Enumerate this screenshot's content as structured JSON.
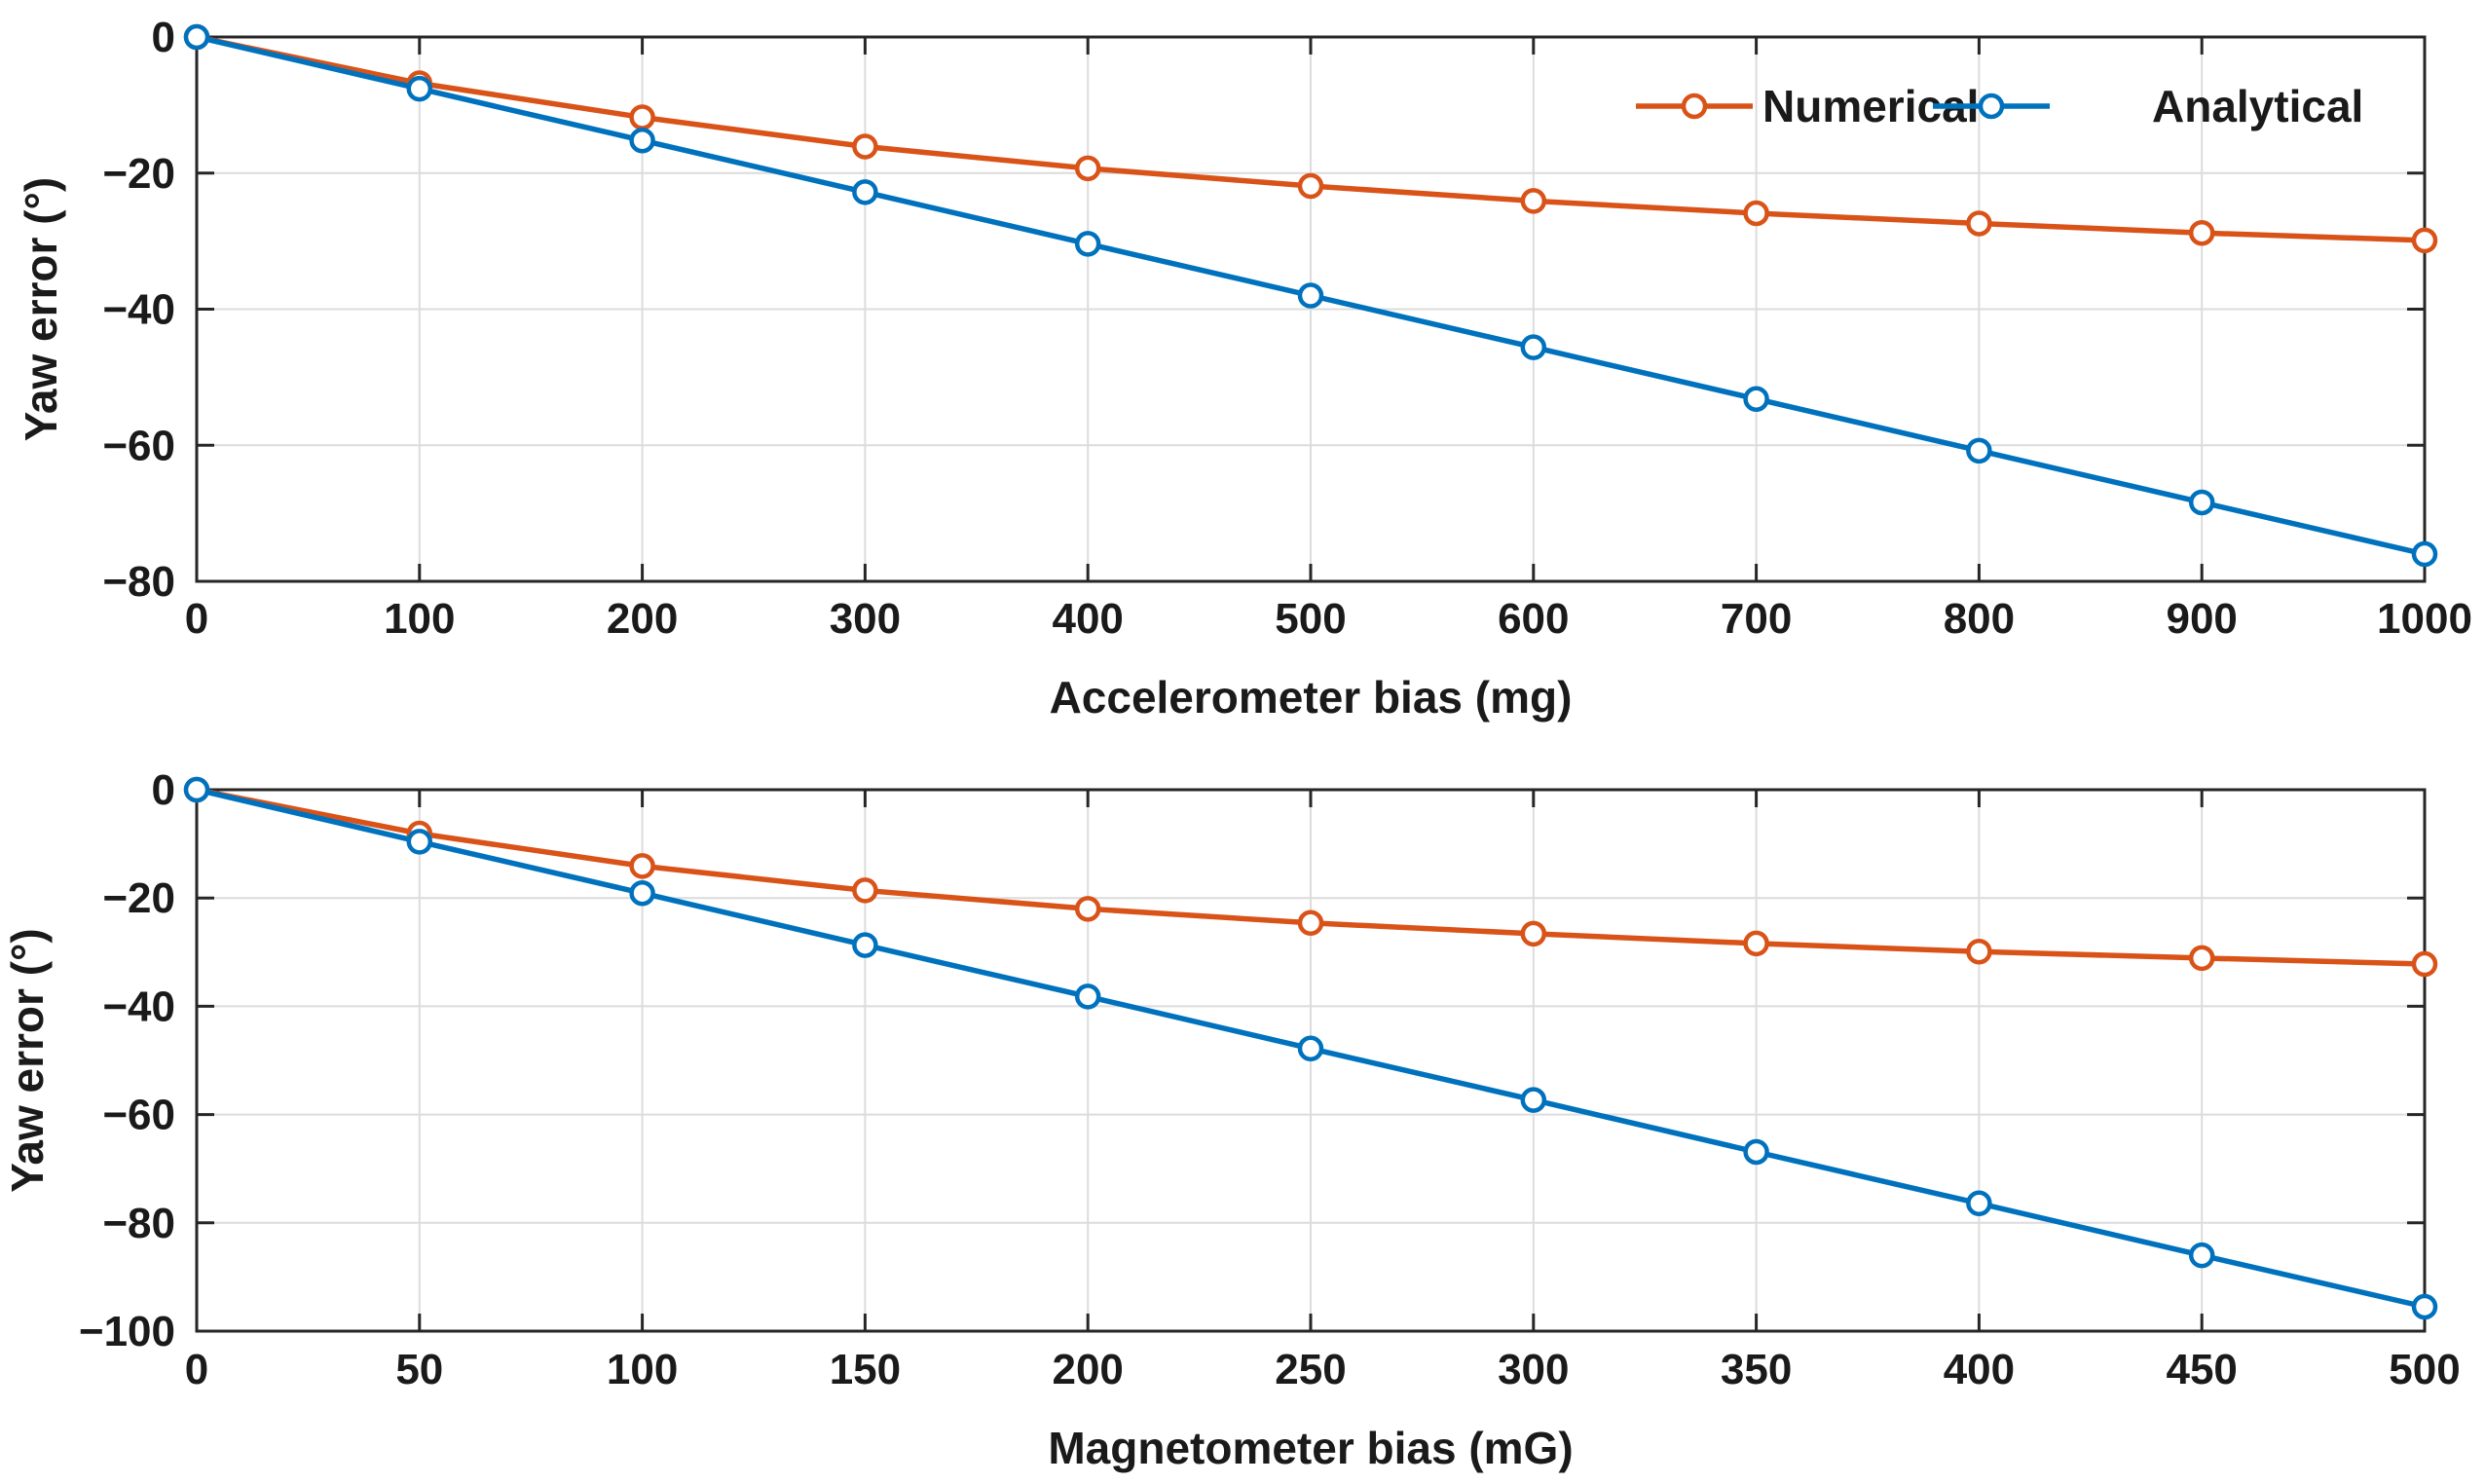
{
  "chart_data": [
    {
      "type": "line",
      "title": "",
      "xlabel": "Accelerometer bias (mg)",
      "ylabel": "Yaw error (°)",
      "x": [
        0,
        100,
        200,
        300,
        400,
        500,
        600,
        700,
        800,
        900,
        1000
      ],
      "xlim": [
        0,
        1000
      ],
      "ylim": [
        -80,
        0
      ],
      "xticks": [
        0,
        100,
        200,
        300,
        400,
        500,
        600,
        700,
        800,
        900,
        1000
      ],
      "xtick_labels": [
        "0",
        "100",
        "200",
        "300",
        "400",
        "500",
        "600",
        "700",
        "800",
        "900",
        "1000"
      ],
      "yticks": [
        0,
        -20,
        -40,
        -60,
        -80
      ],
      "ytick_labels": [
        "0",
        "−20",
        "−40",
        "−60",
        "−80"
      ],
      "grid": true,
      "legend": {
        "placement": "top-right",
        "orientation": "horizontal",
        "entries": [
          "Numerical",
          "Analytical"
        ]
      },
      "series": [
        {
          "name": "Numerical",
          "color": "#D95319",
          "values": [
            0,
            -6.8,
            -11.8,
            -16.1,
            -19.3,
            -21.9,
            -24.1,
            -25.9,
            -27.4,
            -28.8,
            -29.9
          ]
        },
        {
          "name": "Analytical",
          "color": "#0072BD",
          "values": [
            0,
            -7.6,
            -15.2,
            -22.8,
            -30.4,
            -38.0,
            -45.6,
            -53.2,
            -60.8,
            -68.4,
            -76.0
          ]
        }
      ]
    },
    {
      "type": "line",
      "title": "",
      "xlabel": "Magnetometer bias (mG)",
      "ylabel": "Yaw error (°)",
      "x": [
        0,
        50,
        100,
        150,
        200,
        250,
        300,
        350,
        400,
        450,
        500
      ],
      "xlim": [
        0,
        500
      ],
      "ylim": [
        -100,
        0
      ],
      "xticks": [
        0,
        50,
        100,
        150,
        200,
        250,
        300,
        350,
        400,
        450,
        500
      ],
      "xtick_labels": [
        "0",
        "50",
        "100",
        "150",
        "200",
        "250",
        "300",
        "350",
        "400",
        "450",
        "500"
      ],
      "yticks": [
        0,
        -20,
        -40,
        -60,
        -80,
        -100
      ],
      "ytick_labels": [
        "0",
        "−20",
        "−40",
        "−60",
        "−80",
        "−100"
      ],
      "grid": true,
      "legend": null,
      "series": [
        {
          "name": "Numerical",
          "color": "#D95319",
          "values": [
            0,
            -8.1,
            -14.1,
            -18.6,
            -22.0,
            -24.6,
            -26.6,
            -28.4,
            -29.9,
            -31.1,
            -32.2
          ]
        },
        {
          "name": "Analytical",
          "color": "#0072BD",
          "values": [
            0,
            -9.6,
            -19.1,
            -28.7,
            -38.2,
            -47.8,
            -57.3,
            -66.9,
            -76.4,
            -86.0,
            -95.5
          ]
        }
      ]
    }
  ]
}
